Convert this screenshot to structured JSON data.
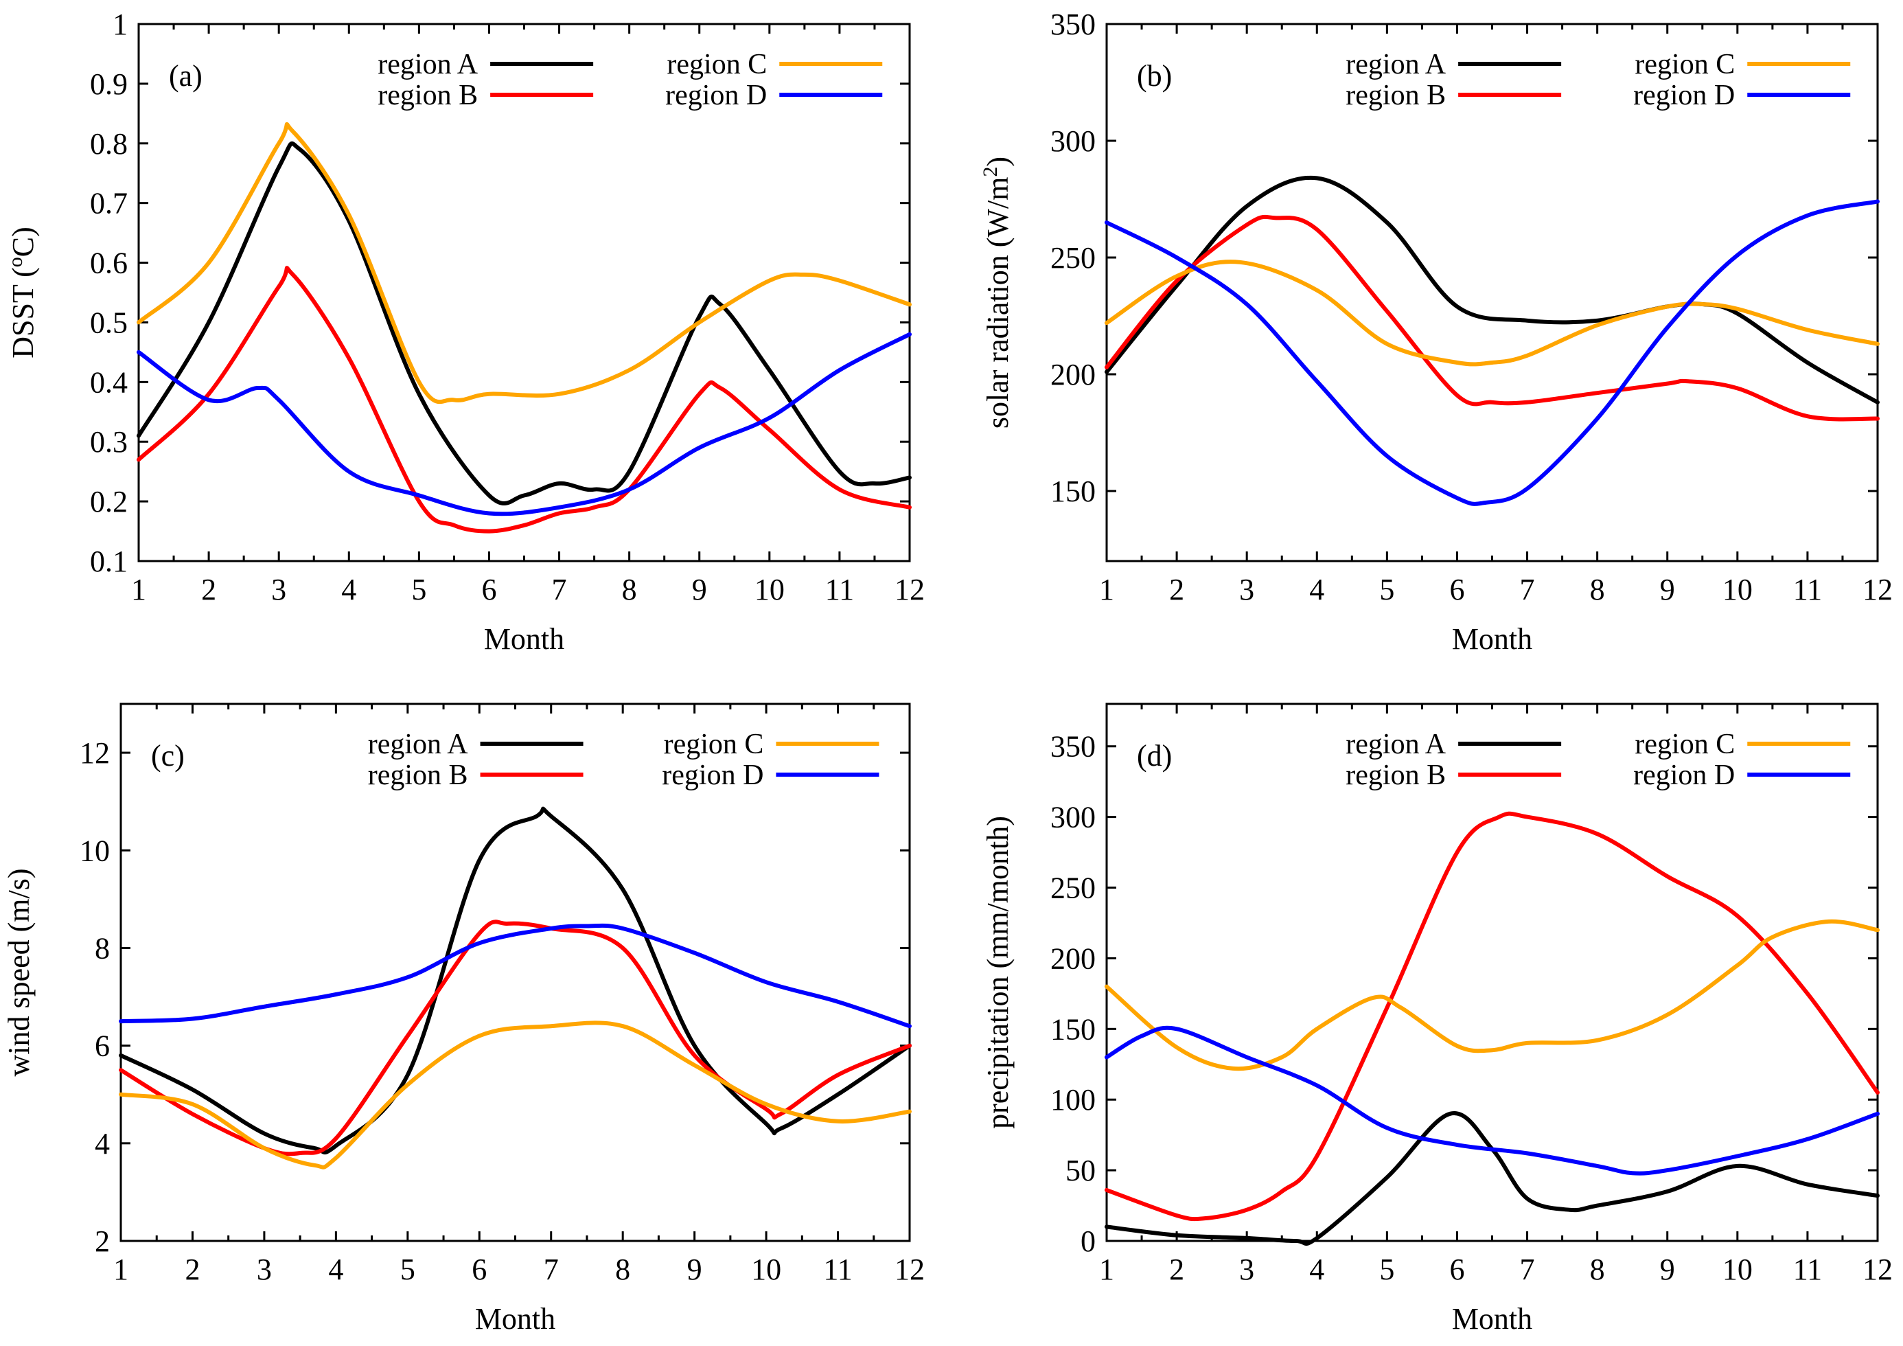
{
  "colors": {
    "region A": "#000000",
    "region B": "#ff0000",
    "region C": "#ffa500",
    "region D": "#0000ff"
  },
  "chart_data": [
    {
      "type": "line",
      "panel": "(a)",
      "xlabel": "Month",
      "ylabel": "DSST (°C)",
      "ylabel_main": "DSST (",
      "ylabel_sup": "o",
      "ylabel_tail": "C)",
      "xlim": [
        1,
        12
      ],
      "ylim": [
        0.1,
        1
      ],
      "xticks": [
        1,
        2,
        3,
        4,
        5,
        6,
        7,
        8,
        9,
        10,
        11,
        12
      ],
      "yticks": [
        0.1,
        0.2,
        0.3,
        0.4,
        0.5,
        0.6,
        0.7,
        0.8,
        0.9,
        1
      ],
      "ytick_labels": [
        "0.1",
        "0.2",
        "0.3",
        "0.4",
        "0.5",
        "0.6",
        "0.7",
        "0.8",
        "0.9",
        "1"
      ],
      "xtick_labels": [
        "1",
        "2",
        "3",
        "4",
        "5",
        "6",
        "7",
        "8",
        "9",
        "10",
        "11",
        "12"
      ],
      "series": [
        {
          "name": "region A",
          "x": [
            1,
            2,
            3,
            3.3,
            4,
            5,
            6,
            6.5,
            7,
            7.5,
            8,
            9,
            9.3,
            10,
            11,
            11.5,
            12
          ],
          "values": [
            0.31,
            0.5,
            0.76,
            0.79,
            0.67,
            0.38,
            0.21,
            0.21,
            0.23,
            0.22,
            0.25,
            0.51,
            0.53,
            0.42,
            0.25,
            0.23,
            0.24
          ]
        },
        {
          "name": "region B",
          "x": [
            1,
            2,
            3,
            3.2,
            4,
            5,
            5.5,
            6,
            6.5,
            7,
            7.5,
            8,
            9,
            9.3,
            10,
            11,
            12
          ],
          "values": [
            0.27,
            0.38,
            0.56,
            0.58,
            0.44,
            0.2,
            0.16,
            0.15,
            0.16,
            0.18,
            0.19,
            0.22,
            0.38,
            0.39,
            0.32,
            0.22,
            0.19
          ]
        },
        {
          "name": "region C",
          "x": [
            1,
            2,
            3,
            3.2,
            4,
            5,
            5.5,
            6,
            7,
            8,
            9,
            10,
            10.5,
            11,
            12
          ],
          "values": [
            0.5,
            0.6,
            0.8,
            0.82,
            0.68,
            0.4,
            0.37,
            0.38,
            0.38,
            0.42,
            0.5,
            0.57,
            0.58,
            0.57,
            0.53
          ]
        },
        {
          "name": "region D",
          "x": [
            1,
            2,
            2.7,
            3,
            4,
            5,
            6,
            7,
            8,
            9,
            10,
            11,
            12
          ],
          "values": [
            0.45,
            0.37,
            0.39,
            0.37,
            0.25,
            0.21,
            0.18,
            0.19,
            0.22,
            0.29,
            0.34,
            0.42,
            0.48
          ]
        }
      ]
    },
    {
      "type": "line",
      "panel": "(b)",
      "xlabel": "Month",
      "ylabel": "solar radiation (W/m²)",
      "ylabel_main": "solar radiation (W/m",
      "ylabel_sup": "2",
      "ylabel_tail": ")",
      "xlim": [
        1,
        12
      ],
      "ylim": [
        120,
        350
      ],
      "xticks": [
        1,
        2,
        3,
        4,
        5,
        6,
        7,
        8,
        9,
        10,
        11,
        12
      ],
      "yticks": [
        150,
        200,
        250,
        300,
        350
      ],
      "ytick_labels": [
        "150",
        "200",
        "250",
        "300",
        "350"
      ],
      "xtick_labels": [
        "1",
        "2",
        "3",
        "4",
        "5",
        "6",
        "7",
        "8",
        "9",
        "10",
        "11",
        "12"
      ],
      "series": [
        {
          "name": "region A",
          "x": [
            1,
            2,
            3,
            4,
            5,
            6,
            7,
            8,
            9,
            9.5,
            10,
            11,
            12
          ],
          "values": [
            201,
            238,
            272,
            284,
            265,
            229,
            223,
            223,
            229,
            230,
            226,
            205,
            188
          ]
        },
        {
          "name": "region B",
          "x": [
            1,
            2,
            3,
            3.4,
            4,
            5,
            6,
            6.5,
            7,
            8,
            9,
            9.3,
            10,
            11,
            12
          ],
          "values": [
            203,
            240,
            264,
            267,
            262,
            227,
            191,
            188,
            188,
            192,
            196,
            197,
            194,
            182,
            181
          ]
        },
        {
          "name": "region C",
          "x": [
            1,
            2,
            2.9,
            4,
            5,
            6,
            6.5,
            7,
            8,
            9,
            9.5,
            10,
            11,
            12
          ],
          "values": [
            222,
            242,
            248,
            236,
            213,
            205,
            205,
            208,
            221,
            229,
            230,
            228,
            219,
            213
          ]
        },
        {
          "name": "region D",
          "x": [
            1,
            2,
            3,
            4,
            5,
            6,
            6.4,
            7,
            8,
            9,
            10,
            11,
            12
          ],
          "values": [
            265,
            250,
            230,
            197,
            165,
            147,
            145,
            151,
            181,
            220,
            251,
            268,
            274
          ]
        }
      ]
    },
    {
      "type": "line",
      "panel": "(c)",
      "xlabel": "Month",
      "ylabel": "wind speed (m/s)",
      "ylabel_main": "wind speed (m/s)",
      "ylabel_sup": "",
      "ylabel_tail": "",
      "xlim": [
        1,
        12
      ],
      "ylim": [
        2,
        13
      ],
      "xticks": [
        1,
        2,
        3,
        4,
        5,
        6,
        7,
        8,
        9,
        10,
        11,
        12
      ],
      "yticks": [
        2,
        4,
        6,
        8,
        10,
        12
      ],
      "ytick_labels": [
        "2",
        "4",
        "6",
        "8",
        "10",
        "12"
      ],
      "xtick_labels": [
        "1",
        "2",
        "3",
        "4",
        "5",
        "6",
        "7",
        "8",
        "9",
        "10",
        "11",
        "12"
      ],
      "series": [
        {
          "name": "region A",
          "x": [
            1,
            2,
            3,
            3.7,
            4,
            5,
            6,
            6.8,
            7,
            8,
            9,
            10,
            10.2,
            11,
            12
          ],
          "values": [
            5.8,
            5.1,
            4.2,
            3.9,
            3.95,
            5.4,
            9.8,
            10.7,
            10.7,
            9.2,
            6.0,
            4.4,
            4.3,
            5.0,
            6.0
          ]
        },
        {
          "name": "region B",
          "x": [
            1,
            2,
            3,
            3.5,
            4,
            5,
            6,
            6.4,
            7,
            8,
            9,
            10,
            10.2,
            11,
            12
          ],
          "values": [
            5.5,
            4.6,
            3.9,
            3.8,
            4.1,
            6.2,
            8.3,
            8.5,
            8.4,
            8.0,
            5.8,
            4.7,
            4.6,
            5.4,
            6.0
          ]
        },
        {
          "name": "region C",
          "x": [
            1,
            2,
            3,
            3.7,
            4,
            5,
            6,
            7,
            8,
            9,
            10,
            11,
            12
          ],
          "values": [
            5.0,
            4.8,
            3.9,
            3.55,
            3.7,
            5.2,
            6.2,
            6.4,
            6.4,
            5.6,
            4.8,
            4.45,
            4.65
          ]
        },
        {
          "name": "region D",
          "x": [
            1,
            2,
            3,
            4,
            5,
            6,
            7,
            7.5,
            8,
            9,
            10,
            11,
            12
          ],
          "values": [
            6.5,
            6.55,
            6.8,
            7.05,
            7.4,
            8.1,
            8.4,
            8.45,
            8.4,
            7.9,
            7.3,
            6.9,
            6.4
          ]
        }
      ]
    },
    {
      "type": "line",
      "panel": "(d)",
      "xlabel": "Month",
      "ylabel": "precipitation (mm/month)",
      "ylabel_main": "precipitation (mm/month)",
      "ylabel_sup": "",
      "ylabel_tail": "",
      "xlim": [
        1,
        12
      ],
      "ylim": [
        0,
        380
      ],
      "xticks": [
        1,
        2,
        3,
        4,
        5,
        6,
        7,
        8,
        9,
        10,
        11,
        12
      ],
      "yticks": [
        0,
        50,
        100,
        150,
        200,
        250,
        300,
        350
      ],
      "ytick_labels": [
        "0",
        "50",
        "100",
        "150",
        "200",
        "250",
        "300",
        "350"
      ],
      "xtick_labels": [
        "1",
        "2",
        "3",
        "4",
        "5",
        "6",
        "7",
        "8",
        "9",
        "10",
        "11",
        "12"
      ],
      "series": [
        {
          "name": "region A",
          "x": [
            1,
            2,
            3,
            3.7,
            4,
            5,
            5.9,
            6.5,
            7,
            7.6,
            8,
            9,
            10,
            11,
            12
          ],
          "values": [
            10,
            4,
            2,
            0,
            2,
            45,
            90,
            65,
            30,
            22,
            25,
            35,
            53,
            40,
            32
          ]
        },
        {
          "name": "region B",
          "x": [
            1,
            2,
            2.4,
            3,
            3.5,
            4,
            5,
            6,
            6.6,
            7,
            8,
            9,
            10,
            11,
            12
          ],
          "values": [
            36,
            18,
            16,
            22,
            35,
            60,
            165,
            275,
            300,
            300,
            288,
            258,
            230,
            175,
            105
          ]
        },
        {
          "name": "region C",
          "x": [
            1,
            2,
            2.8,
            3.5,
            4,
            4.8,
            5.2,
            6,
            6.5,
            7,
            8,
            9,
            10,
            10.5,
            11.3,
            12
          ],
          "values": [
            180,
            137,
            122,
            130,
            150,
            172,
            165,
            138,
            135,
            140,
            142,
            160,
            195,
            215,
            226,
            220
          ]
        },
        {
          "name": "region D",
          "x": [
            1,
            1.5,
            2,
            3,
            4,
            5,
            6,
            7,
            8,
            8.5,
            9,
            10,
            11,
            12
          ],
          "values": [
            130,
            145,
            150,
            130,
            110,
            80,
            68,
            62,
            53,
            48,
            50,
            60,
            72,
            90
          ]
        }
      ]
    }
  ]
}
